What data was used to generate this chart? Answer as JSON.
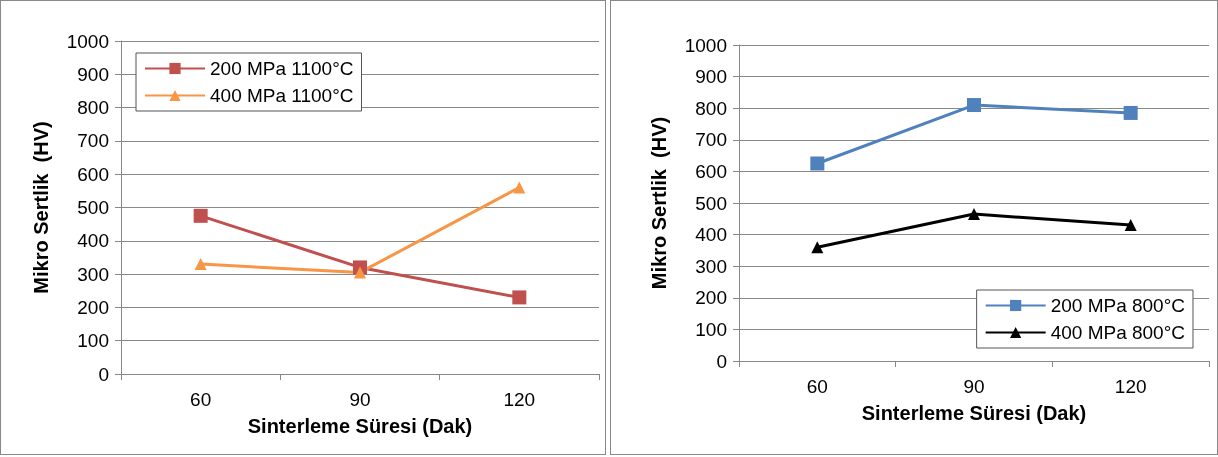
{
  "chart_data": [
    {
      "type": "line",
      "xlabel": "Sinterleme Süresi (Dak)",
      "ylabel": "Mikro Sertlik  (HV)",
      "categories": [
        "60",
        "90",
        "120"
      ],
      "ylim": [
        0,
        1000
      ],
      "yticks": [
        0,
        100,
        200,
        300,
        400,
        500,
        600,
        700,
        800,
        900,
        1000
      ],
      "grid": "y",
      "legend": "top left",
      "series": [
        {
          "name": "200 MPa 1100°C",
          "color": "#c0504d",
          "marker": "square",
          "values": [
            475,
            320,
            230
          ]
        },
        {
          "name": "400 MPa 1100°C",
          "color": "#f79646",
          "marker": "triangle",
          "values": [
            330,
            305,
            560
          ]
        }
      ]
    },
    {
      "type": "line",
      "xlabel": "Sinterleme Süresi (Dak)",
      "ylabel": "Mikro Sertlik  (HV)",
      "categories": [
        "60",
        "90",
        "120"
      ],
      "ylim": [
        0,
        1000
      ],
      "yticks": [
        0,
        100,
        200,
        300,
        400,
        500,
        600,
        700,
        800,
        900,
        1000
      ],
      "grid": "y",
      "legend": "bottom right",
      "series": [
        {
          "name": "200 MPa 800°C",
          "color": "#4f81bd",
          "marker": "square",
          "values": [
            625,
            810,
            785
          ]
        },
        {
          "name": "400 MPa 800°C",
          "color": "#000000",
          "marker": "triangle",
          "values": [
            360,
            465,
            430
          ]
        }
      ]
    }
  ]
}
